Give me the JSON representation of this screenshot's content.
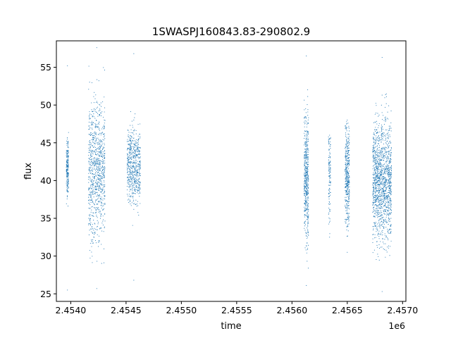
{
  "chart_data": {
    "type": "scatter",
    "title": "1SWASPJ160843.83-290802.9",
    "xlabel": "time",
    "ylabel": "flux",
    "x_offset_label": "1e6",
    "xlim": [
      2.45387,
      2.45703
    ],
    "ylim": [
      24.0,
      58.5
    ],
    "x_ticks": [
      2.454,
      2.4545,
      2.455,
      2.4555,
      2.456,
      2.4565,
      2.457
    ],
    "x_tick_labels": [
      "2.4540",
      "2.4545",
      "2.4550",
      "2.4555",
      "2.4560",
      "2.4565",
      "2.4570"
    ],
    "y_ticks": [
      25,
      30,
      35,
      40,
      45,
      50,
      55
    ],
    "y_tick_labels": [
      "25",
      "30",
      "35",
      "40",
      "45",
      "50",
      "55"
    ],
    "grid": false,
    "marker_color": "#1f77b4",
    "segments": [
      {
        "x_start": 2.45396,
        "x_end": 2.45398,
        "center": 41.5,
        "spread": 2.0,
        "min": 25.5,
        "max": 55.2,
        "density": 200
      },
      {
        "x_start": 2.45416,
        "x_end": 2.45431,
        "center": 41.5,
        "spread": 4.5,
        "min": 25.7,
        "max": 57.6,
        "density": 900
      },
      {
        "x_start": 2.45451,
        "x_end": 2.45463,
        "center": 42.0,
        "spread": 2.5,
        "min": 26.8,
        "max": 56.8,
        "density": 600
      },
      {
        "x_start": 2.45611,
        "x_end": 2.45615,
        "center": 40.5,
        "spread": 4.0,
        "min": 26.1,
        "max": 56.5,
        "density": 500
      },
      {
        "x_start": 2.45633,
        "x_end": 2.45635,
        "center": 41.0,
        "spread": 3.0,
        "min": 32.5,
        "max": 46.0,
        "density": 120
      },
      {
        "x_start": 2.45648,
        "x_end": 2.45652,
        "center": 41.0,
        "spread": 3.5,
        "min": 30.5,
        "max": 48.0,
        "density": 400
      },
      {
        "x_start": 2.45673,
        "x_end": 2.4569,
        "center": 40.0,
        "spread": 4.0,
        "min": 25.3,
        "max": 56.3,
        "density": 1400
      }
    ]
  }
}
